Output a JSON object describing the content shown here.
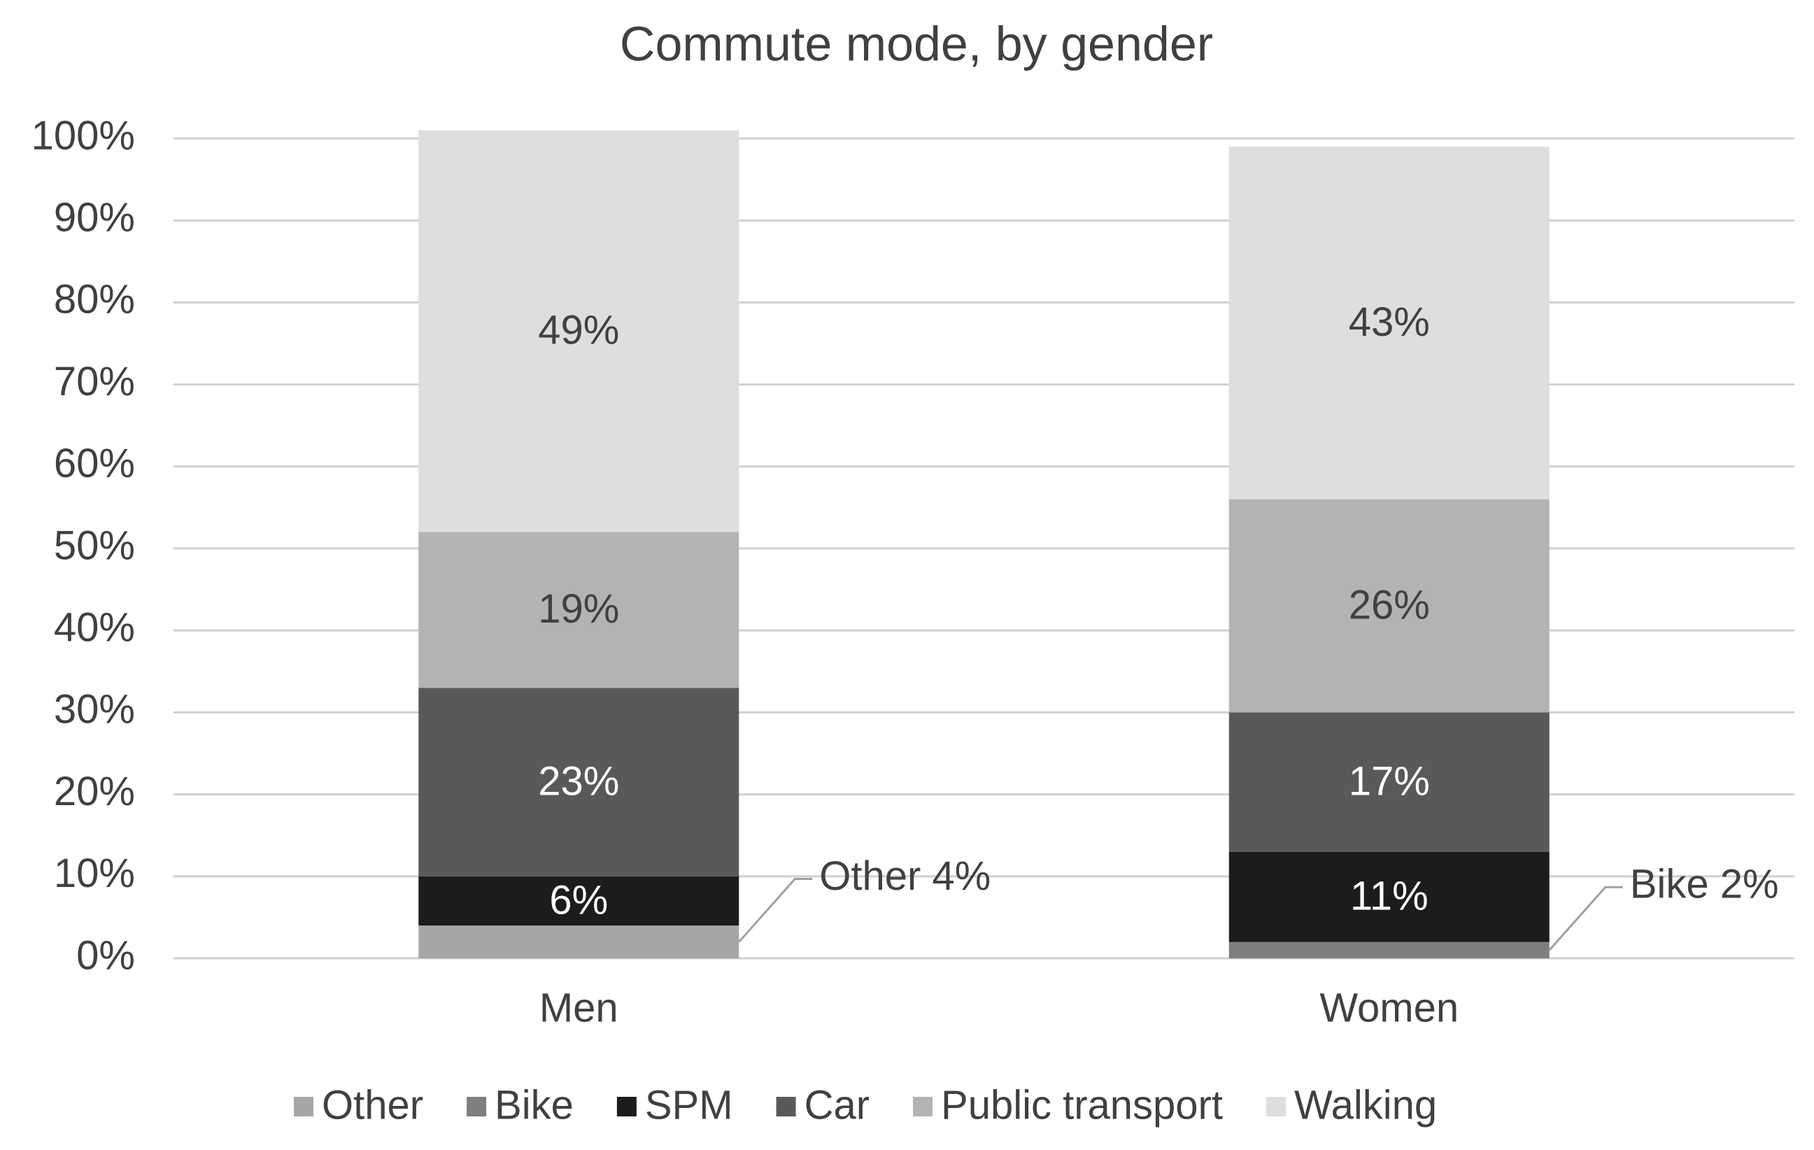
{
  "chart_data": {
    "type": "stacked_bar",
    "title": "Commute mode, by gender",
    "categories": [
      "Men",
      "Women"
    ],
    "series": [
      {
        "name": "Other",
        "color": "#a6a6a6",
        "values": [
          4,
          0
        ],
        "value_labels": [
          "Other 4%",
          null
        ]
      },
      {
        "name": "Bike",
        "color": "#7f7f7f",
        "values": [
          0,
          2
        ],
        "value_labels": [
          null,
          "Bike 2%"
        ]
      },
      {
        "name": "SPM",
        "color": "#1c1c1c",
        "values": [
          6,
          11
        ],
        "value_labels": [
          "6%",
          "11%"
        ]
      },
      {
        "name": "Car",
        "color": "#595959",
        "values": [
          23,
          17
        ],
        "value_labels": [
          "23%",
          "17%"
        ]
      },
      {
        "name": "Public transport",
        "color": "#b3b3b3",
        "values": [
          19,
          26
        ],
        "value_labels": [
          "19%",
          "26%"
        ]
      },
      {
        "name": "Walking",
        "color": "#dedede",
        "values": [
          49,
          43
        ],
        "value_labels": [
          "49%",
          "43%"
        ]
      }
    ],
    "ylim": [
      0,
      100
    ],
    "yticks": [
      {
        "value": 0,
        "label": "0%"
      },
      {
        "value": 10,
        "label": "10%"
      },
      {
        "value": 20,
        "label": "20%"
      },
      {
        "value": 30,
        "label": "30%"
      },
      {
        "value": 40,
        "label": "40%"
      },
      {
        "value": 50,
        "label": "50%"
      },
      {
        "value": 60,
        "label": "60%"
      },
      {
        "value": 70,
        "label": "70%"
      },
      {
        "value": 80,
        "label": "80%"
      },
      {
        "value": 90,
        "label": "90%"
      },
      {
        "value": 100,
        "label": "100%"
      }
    ],
    "grid": true,
    "legend": "bottom"
  }
}
